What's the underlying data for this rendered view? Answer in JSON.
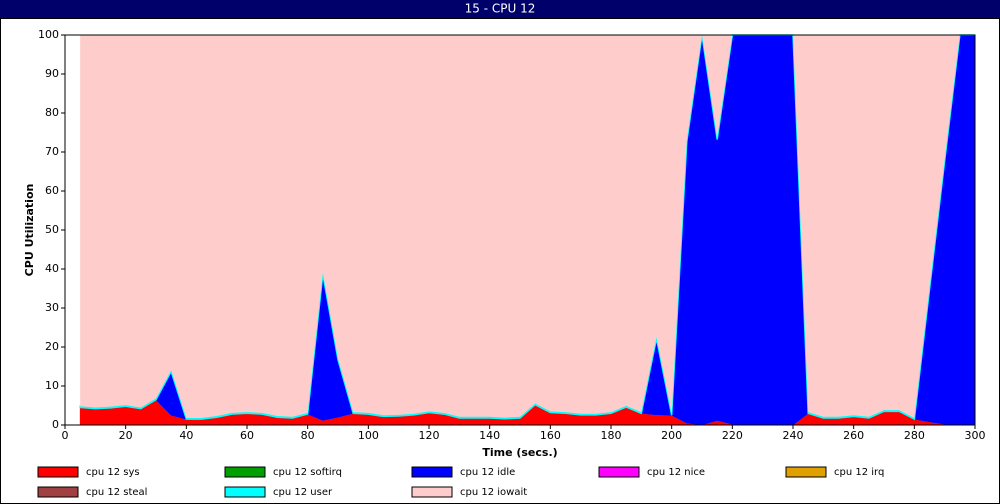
{
  "chart_data": {
    "type": "stacked_area",
    "title": "15 - CPU 12",
    "x_label": "Time (secs.)",
    "y_label": "CPU Utilization",
    "xlim": [
      0,
      300
    ],
    "ylim": [
      0,
      100
    ],
    "xticks": [
      0,
      20,
      40,
      60,
      80,
      100,
      120,
      140,
      160,
      180,
      200,
      220,
      240,
      260,
      280,
      300
    ],
    "yticks": [
      0,
      10,
      20,
      30,
      40,
      50,
      60,
      70,
      80,
      90,
      100
    ],
    "grid": false,
    "x": [
      5,
      10,
      15,
      20,
      25,
      30,
      35,
      40,
      45,
      50,
      55,
      60,
      65,
      70,
      75,
      80,
      85,
      90,
      95,
      100,
      105,
      110,
      115,
      120,
      125,
      130,
      135,
      140,
      145,
      150,
      155,
      160,
      165,
      170,
      175,
      180,
      185,
      190,
      195,
      200,
      205,
      210,
      215,
      220,
      225,
      230,
      235,
      240,
      245,
      250,
      255,
      260,
      265,
      270,
      275,
      280,
      285,
      290,
      295,
      300
    ],
    "series": [
      {
        "name": "cpu 12 sys",
        "color": "#ff0000",
        "values": [
          4.5,
          4.2,
          4.4,
          4.8,
          4.2,
          6.5,
          2.5,
          1.5,
          1.5,
          2,
          2.8,
          3,
          2.8,
          2,
          1.8,
          2.8,
          1.2,
          2,
          3,
          2.8,
          2.2,
          2.3,
          2.6,
          3.2,
          2.8,
          1.8,
          1.8,
          1.8,
          1.6,
          1.8,
          5.2,
          3.2,
          3,
          2.6,
          2.6,
          3,
          4.6,
          3,
          2.6,
          2.5,
          0.5,
          0,
          1.2,
          0.2,
          0,
          0,
          0,
          0,
          3,
          1.8,
          1.8,
          2.2,
          1.8,
          3.5,
          3.5,
          1.5,
          0.8,
          0.2,
          0,
          0
        ]
      },
      {
        "name": "cpu 12 softirq",
        "color": "#00a000",
        "values": [
          0,
          0,
          0,
          0,
          0,
          0,
          0,
          0,
          0,
          0,
          0,
          0,
          0,
          0,
          0,
          0,
          0,
          0,
          0,
          0,
          0,
          0,
          0,
          0,
          0,
          0,
          0,
          0,
          0,
          0,
          0,
          0,
          0,
          0,
          0,
          0,
          0,
          0,
          0,
          0,
          0,
          0,
          0,
          0,
          0,
          0,
          0,
          0,
          0,
          0,
          0,
          0,
          0,
          0,
          0,
          0,
          0,
          0,
          0,
          0
        ]
      },
      {
        "name": "cpu 12 idle",
        "color": "#0000ff",
        "values": [
          0,
          0,
          0,
          0,
          0,
          0,
          11.2,
          0,
          0,
          0,
          0,
          0,
          0,
          0,
          0,
          0,
          37.5,
          14.7,
          0,
          0,
          0,
          0,
          0,
          0,
          0,
          0,
          0,
          0,
          0,
          0,
          0,
          0,
          0,
          0,
          0,
          0,
          0,
          0,
          19.6,
          0,
          72.2,
          100,
          72,
          99.8,
          100,
          100,
          100,
          100,
          0,
          0,
          0,
          0,
          0,
          0,
          0,
          0,
          33.9,
          67.5,
          100,
          100
        ]
      },
      {
        "name": "cpu 12 nice",
        "color": "#ff00ff",
        "values": [
          0,
          0,
          0,
          0,
          0,
          0,
          0,
          0,
          0,
          0,
          0,
          0,
          0,
          0,
          0,
          0,
          0,
          0,
          0,
          0,
          0,
          0,
          0,
          0,
          0,
          0,
          0,
          0,
          0,
          0,
          0,
          0,
          0,
          0,
          0,
          0,
          0,
          0,
          0,
          0,
          0,
          0,
          0,
          0,
          0,
          0,
          0,
          0,
          0,
          0,
          0,
          0,
          0,
          0,
          0,
          0,
          0,
          0,
          0,
          0
        ]
      },
      {
        "name": "cpu 12 irq",
        "color": "#e0a000",
        "values": [
          0,
          0,
          0,
          0,
          0,
          0,
          0,
          0,
          0,
          0,
          0,
          0,
          0,
          0,
          0,
          0,
          0,
          0,
          0,
          0,
          0,
          0,
          0,
          0,
          0,
          0,
          0,
          0,
          0,
          0,
          0,
          0,
          0,
          0,
          0,
          0,
          0,
          0,
          0,
          0,
          0,
          0,
          0,
          0,
          0,
          0,
          0,
          0,
          0,
          0,
          0,
          0,
          0,
          0,
          0,
          0,
          0,
          0,
          0,
          0
        ]
      },
      {
        "name": "cpu 12 steal",
        "color": "#a04040",
        "values": [
          0,
          0,
          0,
          0,
          0,
          0,
          0,
          0,
          0,
          0,
          0,
          0,
          0,
          0,
          0,
          0,
          0,
          0,
          0,
          0,
          0,
          0,
          0,
          0,
          0,
          0,
          0,
          0,
          0,
          0,
          0,
          0,
          0,
          0,
          0,
          0,
          0,
          0,
          0,
          0,
          0,
          0,
          0,
          0,
          0,
          0,
          0,
          0,
          0,
          0,
          0,
          0,
          0,
          0,
          0,
          0,
          0,
          0,
          0,
          0
        ]
      },
      {
        "name": "cpu 12 user",
        "color": "#00ffff",
        "values": [
          0.3,
          0.3,
          0.3,
          0.3,
          0.3,
          0.3,
          0.3,
          0.3,
          0.3,
          0.3,
          0.3,
          0.3,
          0.3,
          0.3,
          0.3,
          0.3,
          0.3,
          0.3,
          0.3,
          0.3,
          0.3,
          0.3,
          0.3,
          0.3,
          0.3,
          0.3,
          0.3,
          0.3,
          0.3,
          0.3,
          0.3,
          0.3,
          0.3,
          0.3,
          0.3,
          0.3,
          0.3,
          0.3,
          0.3,
          0.3,
          0.3,
          0,
          0.3,
          0,
          0,
          0,
          0,
          0,
          0.3,
          0.3,
          0.3,
          0.3,
          0.3,
          0.3,
          0.3,
          0.3,
          0.3,
          0.3,
          0,
          0
        ]
      },
      {
        "name": "cpu 12 iowait",
        "color": "#ffcccc",
        "values": [
          95.2,
          95.5,
          95.3,
          94.9,
          95.5,
          93.2,
          86,
          98.2,
          98.2,
          97.7,
          96.9,
          96.7,
          96.9,
          97.7,
          97.9,
          96.9,
          61,
          83,
          96.7,
          96.9,
          97.5,
          97.4,
          97.1,
          96.5,
          96.9,
          97.9,
          97.9,
          97.9,
          98.1,
          97.9,
          94.5,
          96.5,
          96.7,
          97.1,
          97.1,
          96.7,
          95.1,
          96.7,
          77.5,
          97.2,
          27,
          0,
          26.5,
          0,
          0,
          0,
          0,
          0,
          96.7,
          97.9,
          97.9,
          97.5,
          97.9,
          96.2,
          96.2,
          98.2,
          65,
          32,
          0,
          0
        ]
      }
    ]
  }
}
